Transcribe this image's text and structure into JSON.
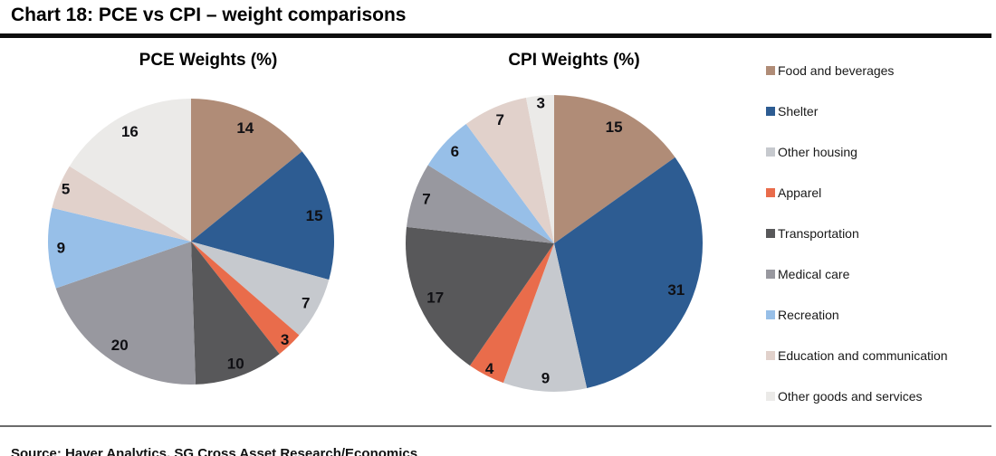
{
  "header": {
    "title": "Chart 18: PCE vs CPI – weight comparisons"
  },
  "footer": {
    "source": "Source: Haver Analytics, SG Cross Asset Research/Economics"
  },
  "chart_data": {
    "type": "pie",
    "value_unit": "percent",
    "start_angle_deg": 0,
    "direction": "clockwise",
    "legend_position": "right",
    "categories": [
      "Food and beverages",
      "Shelter",
      "Other housing",
      "Apparel",
      "Transportation",
      "Medical care",
      "Recreation",
      "Education and communication",
      "Other goods and services"
    ],
    "colors": [
      "#b08c77",
      "#2d5c92",
      "#c6c9ce",
      "#e96c4b",
      "#58585a",
      "#98989f",
      "#97bfe8",
      "#e1d1cb",
      "#ebeae8"
    ],
    "series": [
      {
        "name": "PCE Weights (%)",
        "values": [
          14,
          15,
          7,
          3,
          10,
          20,
          9,
          5,
          16
        ]
      },
      {
        "name": "CPI Weights (%)",
        "values": [
          15,
          31,
          9,
          4,
          17,
          7,
          6,
          7,
          3
        ]
      }
    ]
  }
}
